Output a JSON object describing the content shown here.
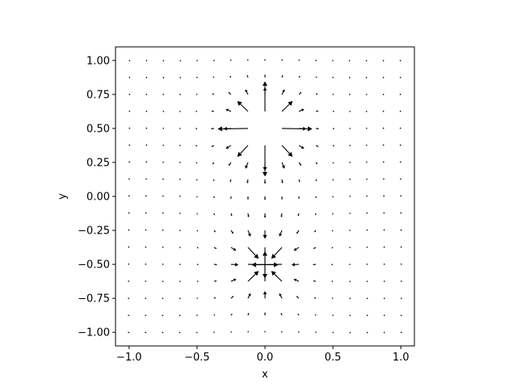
{
  "chart_data": {
    "type": "quiver",
    "title": "",
    "xlabel": "x",
    "ylabel": "y",
    "xlim": [
      -1.1,
      1.1
    ],
    "ylim": [
      -1.1,
      1.1
    ],
    "xticks": [
      -1.0,
      -0.5,
      0.0,
      0.5,
      1.0
    ],
    "xtick_labels": [
      "−1.0",
      "−0.5",
      "0.0",
      "0.5",
      "1.0"
    ],
    "yticks": [
      -1.0,
      -0.75,
      -0.5,
      -0.25,
      0.0,
      0.25,
      0.5,
      0.75,
      1.0
    ],
    "ytick_labels": [
      "−1.00",
      "−0.75",
      "−0.50",
      "−0.25",
      "0.00",
      "0.25",
      "0.50",
      "0.75",
      "1.00"
    ],
    "grid": false,
    "legend": false,
    "grid_points": {
      "x": [
        -1.0,
        -0.875,
        -0.75,
        -0.625,
        -0.5,
        -0.375,
        -0.25,
        -0.125,
        0.0,
        0.125,
        0.25,
        0.375,
        0.5,
        0.625,
        0.75,
        0.875,
        1.0
      ],
      "y": [
        -1.0,
        -0.875,
        -0.75,
        -0.625,
        -0.5,
        -0.375,
        -0.25,
        -0.125,
        0.0,
        0.125,
        0.25,
        0.375,
        0.5,
        0.625,
        0.75,
        0.875,
        1.0
      ]
    },
    "field": {
      "description_of_values": "dipole field: source charge +1 at (0, 0.5), sink charge -1 at (0, -0.5); vectors shown as scaled arrows, large ones near the source clipped",
      "charges": [
        {
          "q": 1,
          "x": 0.0,
          "y": 0.5
        },
        {
          "q": -1,
          "x": 0.0,
          "y": -0.5
        }
      ]
    },
    "colors": {
      "arrow": "#000000",
      "axes": "#000000",
      "background": "#ffffff"
    }
  }
}
